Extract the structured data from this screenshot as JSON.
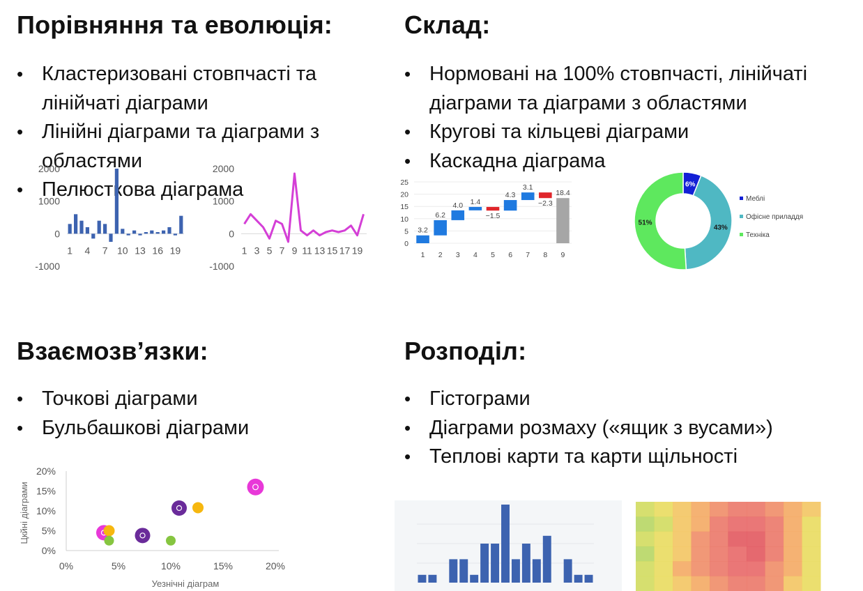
{
  "sections": {
    "comparison": {
      "title": "Порівняння та еволюція:",
      "items": [
        "Кластеризовані стовпчасті та лінійчаті діаграми",
        "Лінійні діаграми та діаграми з областями",
        "Пелюсткова діаграма"
      ]
    },
    "composition": {
      "title": "Склад:",
      "items": [
        "Нормовані на 100% стовпчасті, лінійчаті діаграми та діаграми з областями",
        "Кругові та кільцеві діаграми",
        "Каскадна діаграма"
      ]
    },
    "relationships": {
      "title": "Взаємозв’язки:",
      "items": [
        "Точкові діаграми",
        "Бульбашкові діаграми"
      ]
    },
    "distribution": {
      "title": "Розподіл:",
      "items": [
        "Гістограми",
        "Діаграми розмаху («ящик з вусами»)",
        "Теплові карти та карти щільності"
      ]
    }
  },
  "chart_data": [
    {
      "id": "mini-bar",
      "type": "bar",
      "x": [
        1,
        2,
        3,
        4,
        5,
        6,
        7,
        8,
        9,
        10,
        11,
        12,
        13,
        14,
        15,
        16,
        17,
        18,
        19,
        20
      ],
      "values": [
        300,
        600,
        400,
        200,
        -150,
        400,
        300,
        -250,
        2000,
        150,
        -50,
        100,
        -50,
        50,
        100,
        50,
        100,
        200,
        -50,
        550
      ],
      "x_tick_labels": [
        "1",
        "4",
        "7",
        "10",
        "13",
        "16",
        "19"
      ],
      "y_tick_labels": [
        "2000",
        "1000",
        "0",
        "-1000"
      ],
      "ylim": [
        -1000,
        2000
      ],
      "color": "#3d63b0"
    },
    {
      "id": "mini-line",
      "type": "line",
      "x": [
        1,
        2,
        3,
        4,
        5,
        6,
        7,
        8,
        9,
        10,
        11,
        12,
        13,
        14,
        15,
        16,
        17,
        18,
        19,
        20
      ],
      "values": [
        300,
        600,
        400,
        200,
        -150,
        400,
        300,
        -250,
        1850,
        100,
        -50,
        100,
        -50,
        50,
        100,
        50,
        100,
        250,
        -50,
        600
      ],
      "x_tick_labels": [
        "1",
        "3",
        "5",
        "7",
        "9",
        "11",
        "13",
        "15",
        "17",
        "19"
      ],
      "y_tick_labels": [
        "2000",
        "1000",
        "0",
        "-1000"
      ],
      "ylim": [
        -1000,
        2000
      ],
      "color": "#d43fd6"
    },
    {
      "id": "waterfall",
      "type": "bar",
      "categories": [
        "1",
        "2",
        "3",
        "4",
        "5",
        "6",
        "7",
        "8",
        "9"
      ],
      "values": [
        3.2,
        6.2,
        4.0,
        1.4,
        -1.5,
        4.3,
        3.1,
        -2.3,
        18.4
      ],
      "data_labels": [
        "3.2",
        "6.2",
        "4.0",
        "1.4",
        "−1.5",
        "4.3",
        "3.1",
        "−2.3",
        "18.4"
      ],
      "y_tick_labels": [
        "25",
        "20",
        "15",
        "10",
        "5",
        "0"
      ],
      "ylim": [
        0,
        25
      ],
      "colors": {
        "increase": "#1f7ae0",
        "decrease": "#e0262b",
        "total": "#a6a6a6"
      }
    },
    {
      "id": "donut",
      "type": "pie",
      "slices": [
        {
          "label": "Меблі",
          "value": 6,
          "display": "6%",
          "color": "#1320d6"
        },
        {
          "label": "Офісне приладдя",
          "value": 43,
          "display": "43%",
          "color": "#4fb8c3"
        },
        {
          "label": "Техніка",
          "value": 51,
          "display": "51%",
          "color": "#5ee85e"
        }
      ]
    },
    {
      "id": "bubble",
      "type": "scatter",
      "xlabel": "Уезнічні діаграм",
      "ylabel": "Цкйні діаграми",
      "x_tick_labels": [
        "0%",
        "5%",
        "10%",
        "15%",
        "20%"
      ],
      "y_tick_labels": [
        "20%",
        "15%",
        "10%",
        "5%",
        "0%"
      ],
      "xlim": [
        0,
        20
      ],
      "ylim": [
        0,
        20
      ],
      "points": [
        {
          "x": 3.6,
          "y": 4.5,
          "size": 11,
          "color": "#e838d8",
          "ring": true
        },
        {
          "x": 4.1,
          "y": 5.0,
          "size": 8,
          "color": "#f6b70f",
          "ring": false
        },
        {
          "x": 4.1,
          "y": 2.5,
          "size": 7,
          "color": "#86c540",
          "ring": false
        },
        {
          "x": 7.3,
          "y": 3.8,
          "size": 11,
          "color": "#6a2b9a",
          "ring": true
        },
        {
          "x": 10.0,
          "y": 2.5,
          "size": 7,
          "color": "#86c540",
          "ring": false
        },
        {
          "x": 10.8,
          "y": 10.7,
          "size": 11,
          "color": "#6a2b9a",
          "ring": true
        },
        {
          "x": 12.6,
          "y": 10.8,
          "size": 8,
          "color": "#f6b70f",
          "ring": false
        },
        {
          "x": 18.1,
          "y": 16.0,
          "size": 12,
          "color": "#e838d8",
          "ring": true
        }
      ]
    },
    {
      "id": "histogram",
      "type": "bar",
      "values": [
        1,
        1,
        0,
        3,
        3,
        1,
        5,
        5,
        10,
        3,
        5,
        3,
        6,
        0,
        3,
        1,
        1
      ],
      "color": "#3d63b0"
    },
    {
      "id": "heatmap",
      "type": "heatmap",
      "values": [
        [
          2,
          3,
          4,
          5,
          6,
          7,
          7,
          6,
          5,
          4
        ],
        [
          1,
          2,
          4,
          5,
          7,
          8,
          8,
          7,
          5,
          3
        ],
        [
          2,
          3,
          4,
          6,
          7,
          9,
          9,
          7,
          5,
          3
        ],
        [
          1,
          3,
          4,
          6,
          7,
          8,
          9,
          7,
          5,
          3
        ],
        [
          2,
          3,
          5,
          6,
          7,
          8,
          8,
          6,
          5,
          3
        ],
        [
          2,
          3,
          4,
          5,
          6,
          7,
          7,
          6,
          4,
          3
        ]
      ]
    }
  ]
}
